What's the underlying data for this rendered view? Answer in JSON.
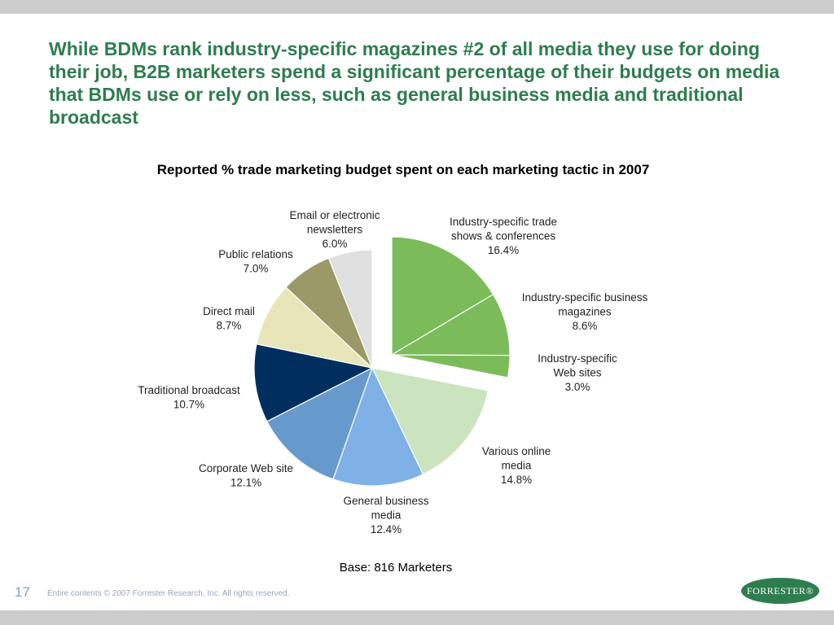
{
  "slide": {
    "headline": "While BDMs rank industry-specific magazines #2 of all media they use for doing their job, B2B marketers spend a significant percentage of their budgets on media that BDMs use or rely on less, such as general business media and traditional broadcast",
    "base_note": "Base: 816 Marketers",
    "page_number": "17",
    "copyright": "Entire contents © 2007  Forrester Research, Inc. All rights reserved.",
    "logo_text": "FORRESTER®"
  },
  "chart_data": {
    "type": "pie",
    "title": "Reported % trade marketing budget spent on each marketing tactic in 2007",
    "slices": [
      {
        "label": [
          "Industry-specific trade",
          "shows & conferences",
          "16.4%"
        ],
        "value": 16.4,
        "color": "#7cbb5a",
        "exploded": true
      },
      {
        "label": [
          "Industry-specific business",
          "magazines",
          "8.6%"
        ],
        "value": 8.6,
        "color": "#7cbb5a",
        "exploded": true
      },
      {
        "label": [
          "Industry-specific",
          "Web sites",
          "3.0%"
        ],
        "value": 3.0,
        "color": "#7cbb5a",
        "exploded": true
      },
      {
        "label": [
          "Various online",
          "media",
          "14.8%"
        ],
        "value": 14.8,
        "color": "#cbe4bf",
        "exploded": false
      },
      {
        "label": [
          "General business",
          "media",
          "12.4%"
        ],
        "value": 12.4,
        "color": "#7fb1e6",
        "exploded": false
      },
      {
        "label": [
          "Corporate Web site",
          "12.1%"
        ],
        "value": 12.1,
        "color": "#6699cc",
        "exploded": false
      },
      {
        "label": [
          "Traditional broadcast",
          "10.7%"
        ],
        "value": 10.7,
        "color": "#002f5f",
        "exploded": false
      },
      {
        "label": [
          "Direct mail",
          "8.7%"
        ],
        "value": 8.7,
        "color": "#e8e6b9",
        "exploded": false
      },
      {
        "label": [
          "Public relations",
          "7.0%"
        ],
        "value": 7.0,
        "color": "#9a9967",
        "exploded": false
      },
      {
        "label": [
          "Email or electronic",
          "newsletters",
          "6.0%"
        ],
        "value": 6.0,
        "color": "#e0e0e0",
        "exploded": false
      }
    ]
  }
}
